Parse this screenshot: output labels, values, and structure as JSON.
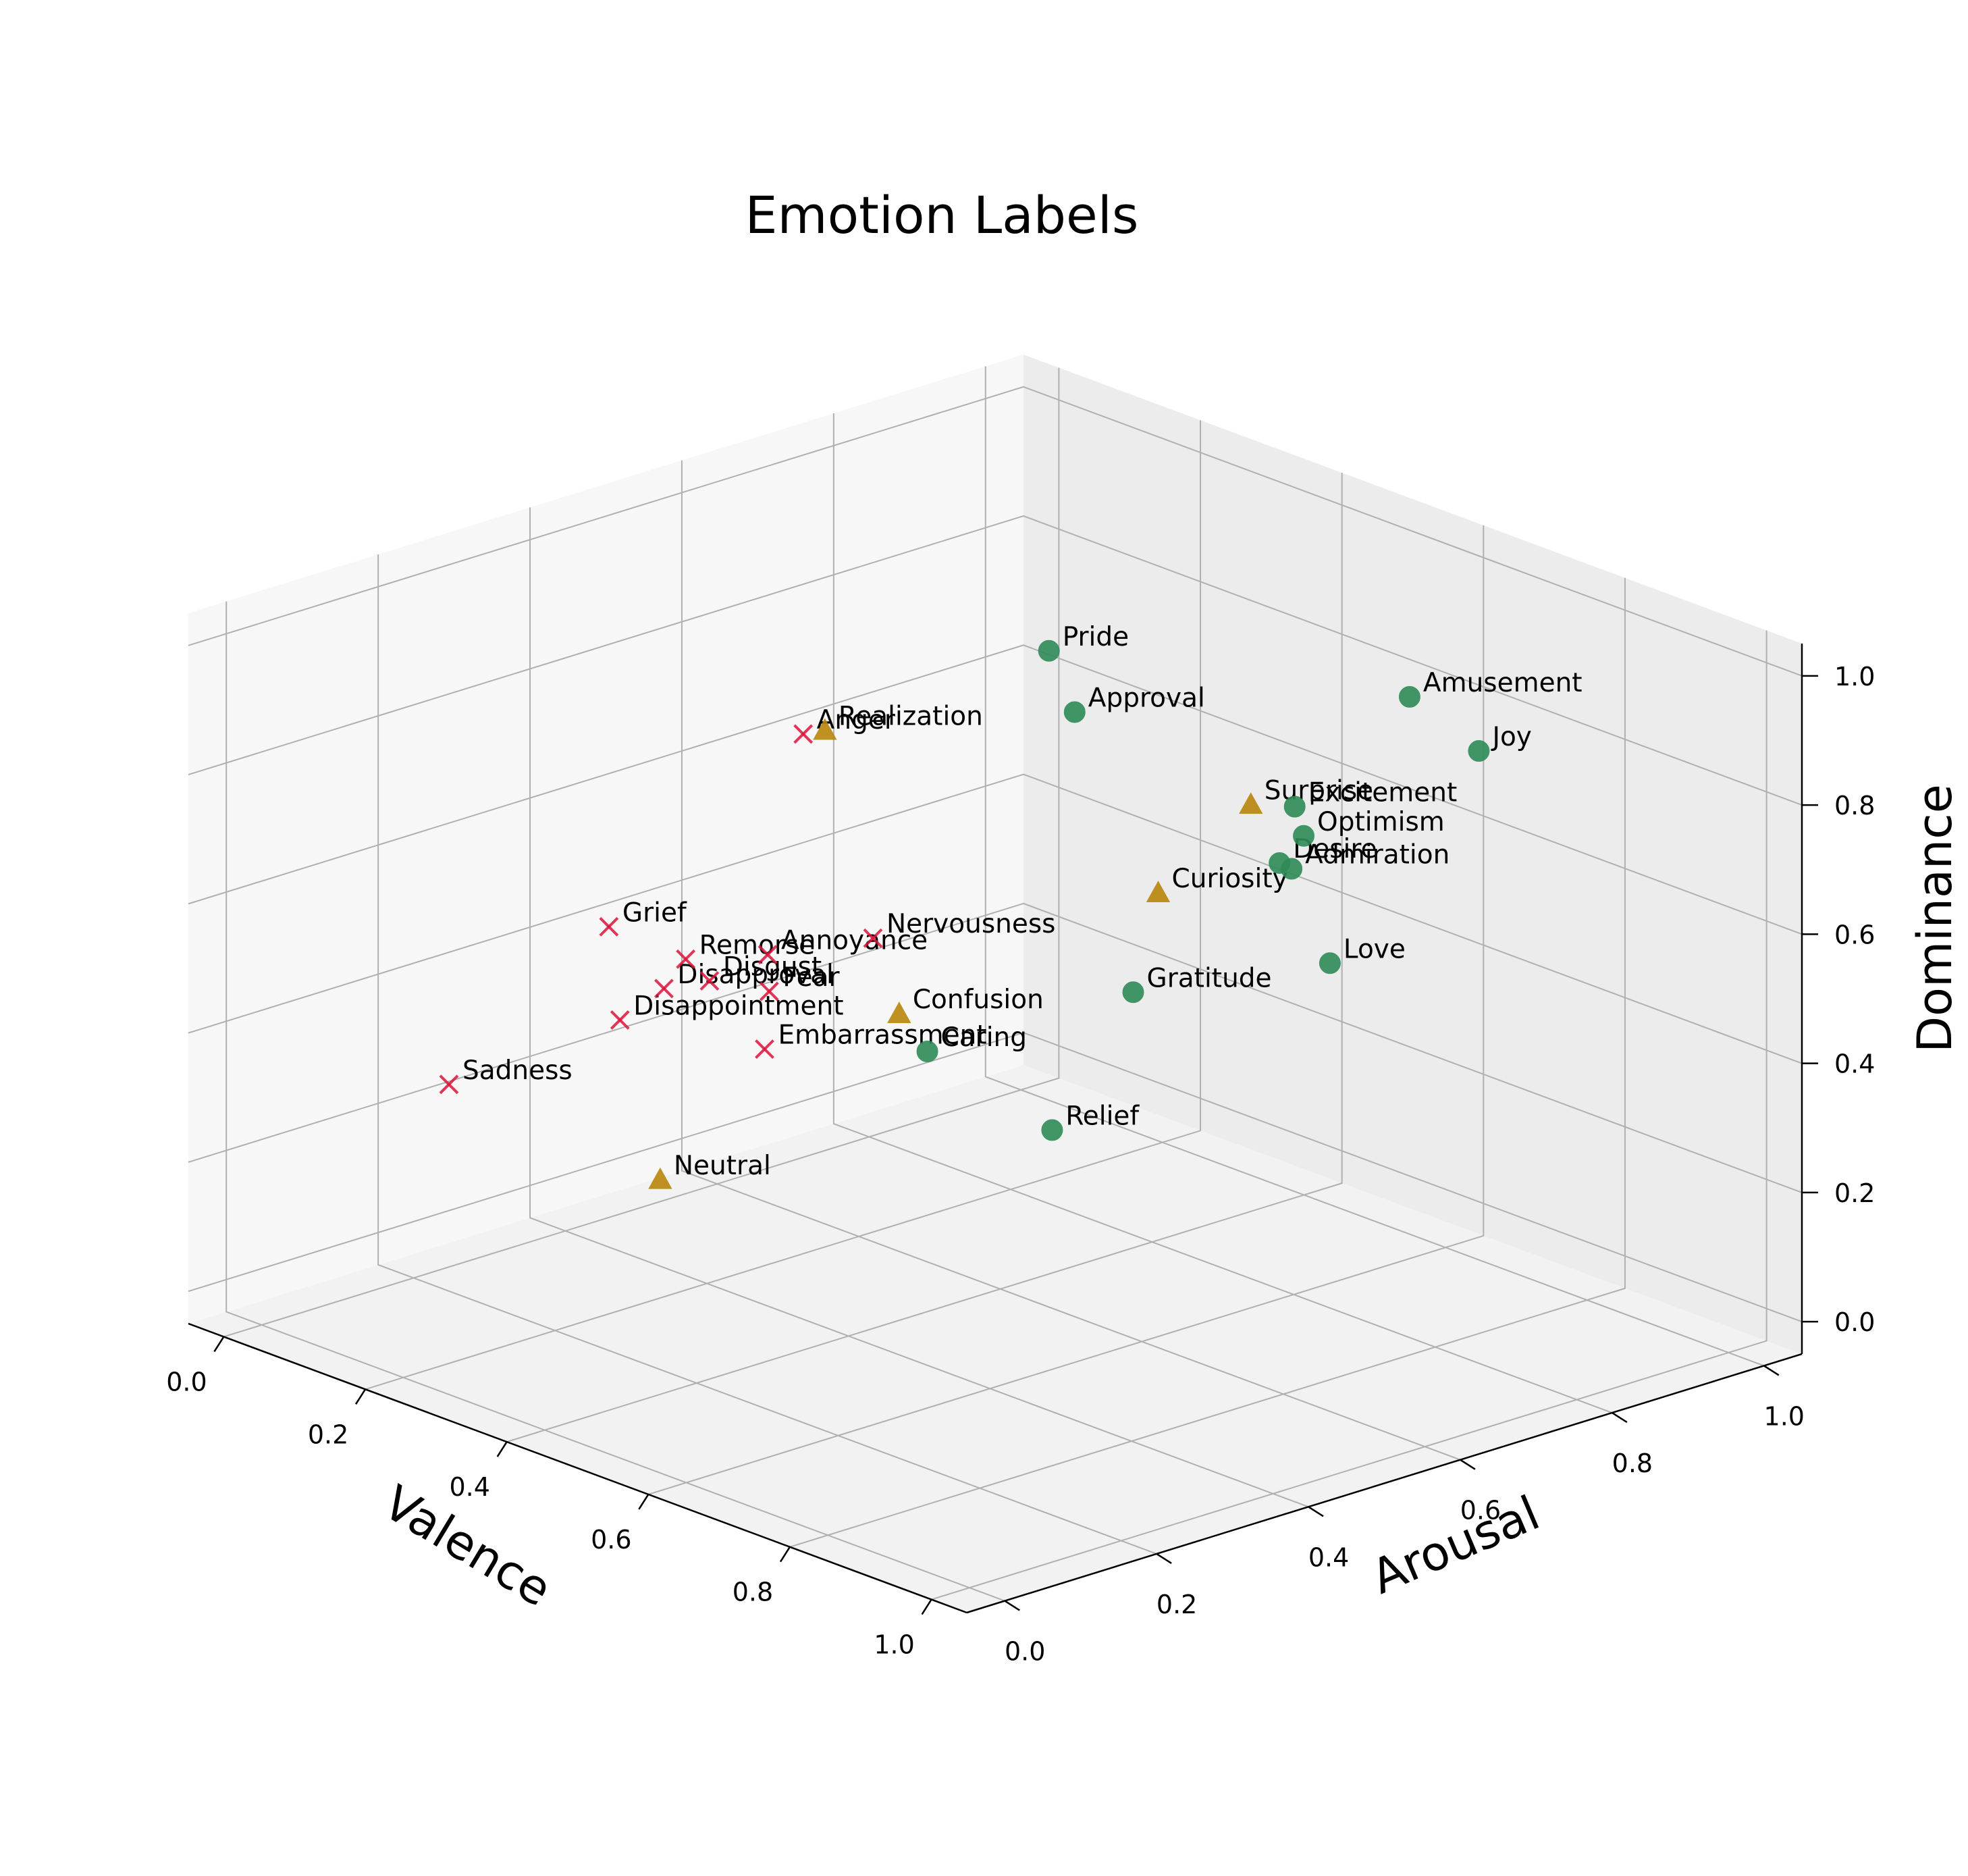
{
  "chart_data": {
    "type": "scatter3d",
    "title": "Emotion Labels",
    "xlabel": "Valence",
    "ylabel": "Arousal",
    "zlabel": "Dominance",
    "xlim": [
      0,
      1
    ],
    "ylim": [
      0,
      1
    ],
    "zlim": [
      0,
      1
    ],
    "x_ticks": [
      "0.0",
      "0.2",
      "0.4",
      "0.6",
      "0.8",
      "1.0"
    ],
    "y_ticks": [
      "0.0",
      "0.2",
      "0.4",
      "0.6",
      "0.8",
      "1.0"
    ],
    "z_ticks": [
      "0.0",
      "0.2",
      "0.4",
      "0.6",
      "0.8",
      "1.0"
    ],
    "grid": true,
    "colors": {
      "negative": "#dc143c",
      "neutral": "#b8860b",
      "positive": "#2e8b57"
    },
    "markers": {
      "negative": "x",
      "neutral": "triangle",
      "positive": "circle"
    },
    "points": [
      {
        "label": "Sadness",
        "valence": 0.05,
        "arousal": 0.2,
        "dominance": 0.27,
        "group": "negative"
      },
      {
        "label": "Disappointment",
        "valence": 0.12,
        "arousal": 0.36,
        "dominance": 0.34,
        "group": "negative"
      },
      {
        "label": "Disapproval",
        "valence": 0.15,
        "arousal": 0.39,
        "dominance": 0.39,
        "group": "negative"
      },
      {
        "label": "Grief",
        "valence": 0.04,
        "arousal": 0.42,
        "dominance": 0.43,
        "group": "negative"
      },
      {
        "label": "Remorse",
        "valence": 0.17,
        "arousal": 0.4,
        "dominance": 0.44,
        "group": "negative"
      },
      {
        "label": "Disgust",
        "valence": 0.15,
        "arousal": 0.45,
        "dominance": 0.38,
        "group": "negative"
      },
      {
        "label": "Annoyance",
        "valence": 0.2,
        "arousal": 0.48,
        "dominance": 0.43,
        "group": "negative"
      },
      {
        "label": "Fear",
        "valence": 0.17,
        "arousal": 0.51,
        "dominance": 0.35,
        "group": "negative"
      },
      {
        "label": "Embarrassment",
        "valence": 0.26,
        "arousal": 0.42,
        "dominance": 0.33,
        "group": "negative"
      },
      {
        "label": "Nervousness",
        "valence": 0.22,
        "arousal": 0.6,
        "dominance": 0.42,
        "group": "negative"
      },
      {
        "label": "Anger",
        "valence": 0.1,
        "arousal": 0.62,
        "dominance": 0.68,
        "group": "negative"
      },
      {
        "label": "Neutral",
        "valence": 0.37,
        "arousal": 0.18,
        "dominance": 0.26,
        "group": "neutral"
      },
      {
        "label": "Confusion",
        "valence": 0.3,
        "arousal": 0.56,
        "dominance": 0.35,
        "group": "neutral"
      },
      {
        "label": "Realization",
        "valence": 0.12,
        "arousal": 0.63,
        "dominance": 0.69,
        "group": "neutral"
      },
      {
        "label": "Curiosity",
        "valence": 0.43,
        "arousal": 0.78,
        "dominance": 0.51,
        "group": "neutral"
      },
      {
        "label": "Surprise",
        "valence": 0.4,
        "arousal": 0.93,
        "dominance": 0.58,
        "group": "neutral"
      },
      {
        "label": "Relief",
        "valence": 0.72,
        "arousal": 0.37,
        "dominance": 0.41,
        "group": "positive"
      },
      {
        "label": "Caring",
        "valence": 0.49,
        "arousal": 0.42,
        "dominance": 0.42,
        "group": "positive"
      },
      {
        "label": "Gratitude",
        "valence": 0.62,
        "arousal": 0.57,
        "dominance": 0.51,
        "group": "positive"
      },
      {
        "label": "Love",
        "valence": 0.78,
        "arousal": 0.68,
        "dominance": 0.58,
        "group": "positive"
      },
      {
        "label": "Desire",
        "valence": 0.58,
        "arousal": 0.8,
        "dominance": 0.61,
        "group": "positive"
      },
      {
        "label": "Admiration",
        "valence": 0.64,
        "arousal": 0.76,
        "dominance": 0.64,
        "group": "positive"
      },
      {
        "label": "Excitement",
        "valence": 0.58,
        "arousal": 0.82,
        "dominance": 0.69,
        "group": "positive"
      },
      {
        "label": "Optimism",
        "valence": 0.7,
        "arousal": 0.72,
        "dominance": 0.73,
        "group": "positive"
      },
      {
        "label": "Approval",
        "valence": 0.43,
        "arousal": 0.67,
        "dominance": 0.83,
        "group": "positive"
      },
      {
        "label": "Pride",
        "valence": 0.34,
        "arousal": 0.72,
        "dominance": 0.87,
        "group": "positive"
      },
      {
        "label": "Amusement",
        "valence": 0.56,
        "arousal": 0.99,
        "dominance": 0.79,
        "group": "positive"
      },
      {
        "label": "Joy",
        "valence": 0.69,
        "arousal": 0.96,
        "dominance": 0.77,
        "group": "positive"
      }
    ]
  }
}
